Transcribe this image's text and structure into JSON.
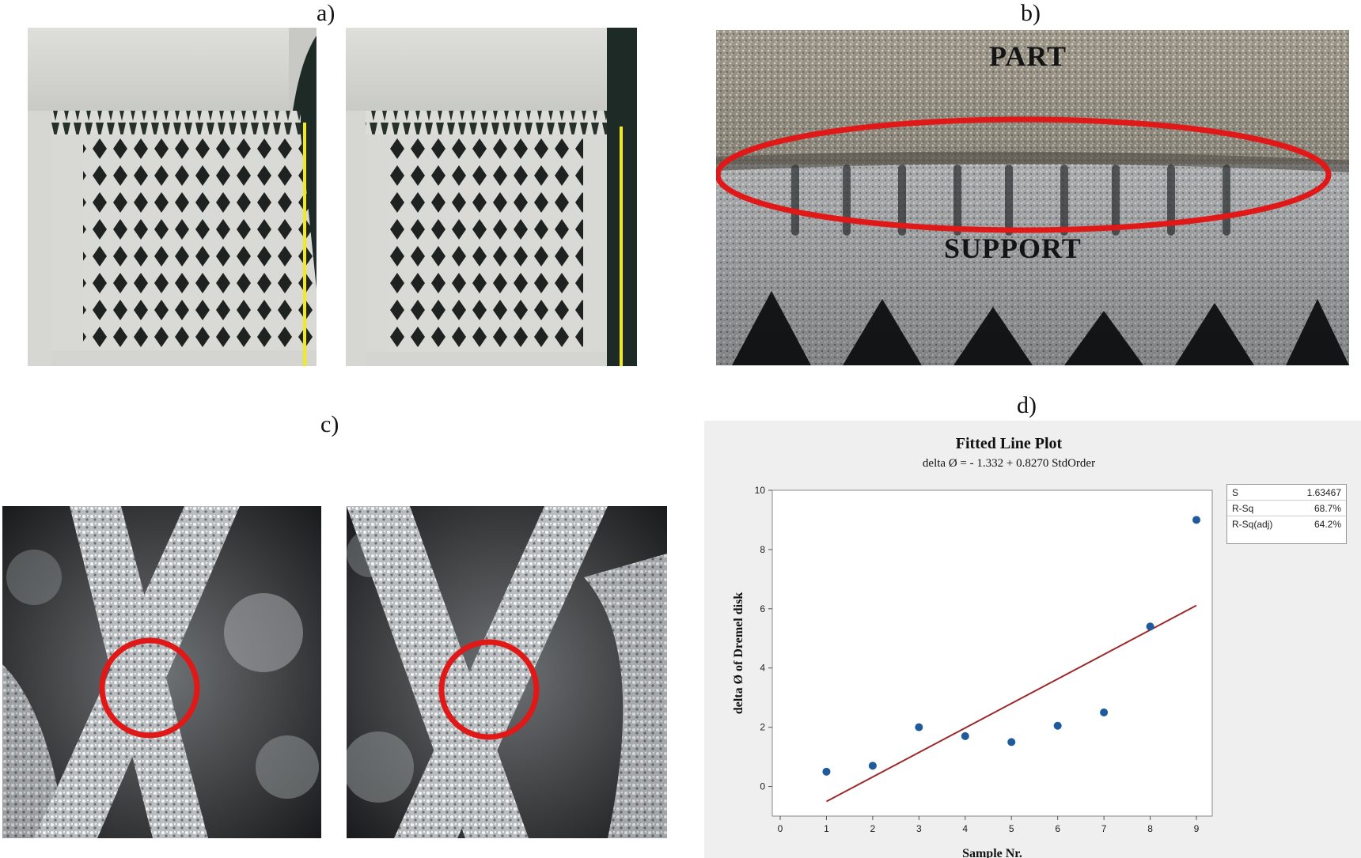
{
  "panels": {
    "a": "a)",
    "b": "b)",
    "c": "c)",
    "d": "d)"
  },
  "photo_b": {
    "top_label": "PART",
    "bottom_label": "SUPPORT"
  },
  "colors": {
    "highlight": "#e01818",
    "marker_line": "#f2ea1a",
    "fit_line": "#9c2a2a",
    "points": "#1f5a9c"
  },
  "chart_data": {
    "type": "scatter",
    "title": "Fitted Line Plot",
    "subtitle": "delta Ø = - 1.332 + 0.8270 StdOrder",
    "xlabel": "Sample Nr.",
    "ylabel": "delta Ø of Dremel disk",
    "xlim": [
      0,
      9
    ],
    "ylim": [
      -1,
      10
    ],
    "x_ticks": [
      0,
      1,
      2,
      3,
      4,
      5,
      6,
      7,
      8,
      9
    ],
    "y_ticks": [
      0,
      2,
      4,
      6,
      8,
      10
    ],
    "points": [
      {
        "x": 1,
        "y": 0.5
      },
      {
        "x": 2,
        "y": 0.7
      },
      {
        "x": 3,
        "y": 2.0
      },
      {
        "x": 4,
        "y": 1.7
      },
      {
        "x": 5,
        "y": 1.5
      },
      {
        "x": 6,
        "y": 2.05
      },
      {
        "x": 7,
        "y": 2.5
      },
      {
        "x": 8,
        "y": 5.4
      },
      {
        "x": 9,
        "y": 9.0
      }
    ],
    "fit": {
      "intercept": -1.332,
      "slope": 0.827,
      "x_range": [
        1,
        9
      ]
    },
    "stats": [
      {
        "label": "S",
        "value": "1.63467"
      },
      {
        "label": "R-Sq",
        "value": "68.7%"
      },
      {
        "label": "R-Sq(adj)",
        "value": "64.2%"
      }
    ],
    "grid": false,
    "legend": "none"
  }
}
